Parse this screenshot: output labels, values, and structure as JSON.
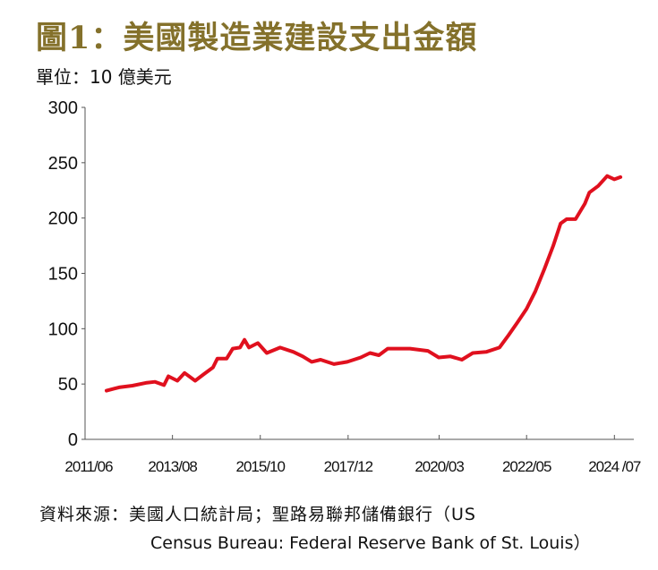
{
  "title": "圖1：美國製造業建設支出金額",
  "unit": "單位：10 億美元",
  "source_line1": "資料來源：美國人口統計局；聖路易聯邦儲備銀行（US",
  "source_line2": "Census Bureau: Federal Reserve Bank of St. Louis）",
  "colors": {
    "title": "#84712b",
    "line": "#e0101e"
  },
  "chart_data": {
    "type": "line",
    "title": "圖1：美國製造業建設支出金額",
    "ylabel": "單位：10 億美元",
    "xlabel": "",
    "ylim": [
      0,
      300
    ],
    "xlim": [
      2011.42,
      2024.98
    ],
    "grid": false,
    "yticks": [
      0,
      50,
      100,
      150,
      200,
      250,
      300
    ],
    "ytick_labels": [
      "0",
      "50",
      "100",
      "150",
      "200",
      "250",
      "300"
    ],
    "xticks": [
      2011.42,
      2013.58,
      2015.75,
      2017.92,
      2020.17,
      2022.33,
      2024.5
    ],
    "xtick_labels": [
      "2011/06",
      "2013/08",
      "2015/10",
      "2017/12",
      "2020/03",
      "2022/05",
      "2024 /07"
    ],
    "series": [
      {
        "name": "製造業建設支出",
        "x": [
          2011.95,
          2012.26,
          2012.59,
          2012.92,
          2013.15,
          2013.37,
          2013.48,
          2013.7,
          2013.88,
          2014.14,
          2014.36,
          2014.58,
          2014.69,
          2014.92,
          2015.07,
          2015.25,
          2015.36,
          2015.47,
          2015.69,
          2015.91,
          2016.24,
          2016.57,
          2016.8,
          2017.02,
          2017.24,
          2017.57,
          2017.9,
          2018.23,
          2018.46,
          2018.68,
          2018.9,
          2019.45,
          2019.89,
          2020.16,
          2020.45,
          2020.73,
          2021.0,
          2021.33,
          2021.66,
          2021.88,
          2022.11,
          2022.33,
          2022.55,
          2022.77,
          2022.99,
          2023.17,
          2023.32,
          2023.54,
          2023.77,
          2023.88,
          2024.1,
          2024.32,
          2024.5,
          2024.65
        ],
        "y": [
          44,
          47,
          48.5,
          51,
          52,
          49,
          57,
          53,
          60,
          53,
          59,
          65,
          73,
          73,
          82,
          83,
          90,
          83,
          87,
          78,
          83,
          79,
          75,
          70,
          72,
          68,
          70,
          74,
          78,
          76,
          82,
          82,
          80,
          74,
          75,
          72,
          78,
          79,
          83,
          94,
          106,
          118,
          134,
          154,
          175,
          195,
          199,
          199,
          213,
          223,
          229,
          238,
          235,
          237
        ]
      }
    ]
  }
}
